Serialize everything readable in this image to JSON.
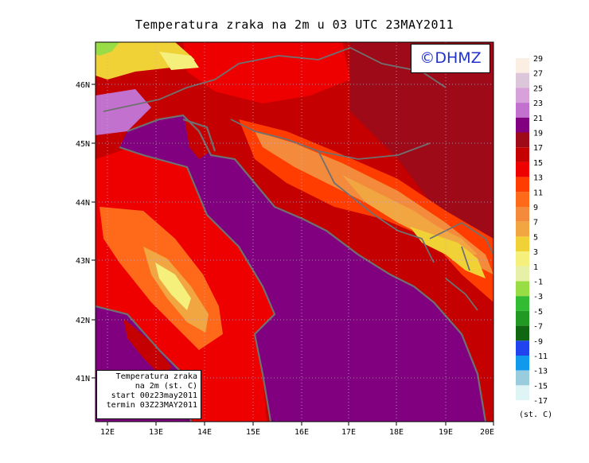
{
  "title": "Temperatura zraka na 2m u 03 UTC 23MAY2011",
  "logo": "©DHMZ",
  "info_box": {
    "line1": "Temperatura zraka",
    "line2": "na 2m (st. C)",
    "line3": "start 00z23may2011",
    "line4": "termin 03Z23MAY2011"
  },
  "x_ticks": [
    "12E",
    "13E",
    "14E",
    "15E",
    "16E",
    "17E",
    "18E",
    "19E",
    "20E"
  ],
  "y_ticks": [
    "41N",
    "42N",
    "43N",
    "44N",
    "45N",
    "46N"
  ],
  "legend": {
    "unit": "(st. C)",
    "levels": [
      {
        "label": "29",
        "color": "#fbeee2"
      },
      {
        "label": "27",
        "color": "#dcc6da"
      },
      {
        "label": "25",
        "color": "#d6a2d9"
      },
      {
        "label": "23",
        "color": "#c271cf"
      },
      {
        "label": "21",
        "color": "#800080"
      },
      {
        "label": "19",
        "color": "#9e0a18"
      },
      {
        "label": "17",
        "color": "#c40000"
      },
      {
        "label": "15",
        "color": "#ee0000"
      },
      {
        "label": "13",
        "color": "#ff3d00"
      },
      {
        "label": "11",
        "color": "#ff6a1a"
      },
      {
        "label": "9",
        "color": "#f38a3c"
      },
      {
        "label": "7",
        "color": "#f2a642"
      },
      {
        "label": "5",
        "color": "#f0d237"
      },
      {
        "label": "3",
        "color": "#f5ef7c"
      },
      {
        "label": "1",
        "color": "#e6f0a6"
      },
      {
        "label": "-1",
        "color": "#99dd44"
      },
      {
        "label": "-3",
        "color": "#33bb33"
      },
      {
        "label": "-5",
        "color": "#229922"
      },
      {
        "label": "-7",
        "color": "#116611"
      },
      {
        "label": "-9",
        "color": "#2244ee"
      },
      {
        "label": "-11",
        "color": "#1199ee"
      },
      {
        "label": "-13",
        "color": "#99ccdd"
      },
      {
        "label": "-15",
        "color": "#dff5f5"
      },
      {
        "label": "-17",
        "color": ""
      }
    ]
  },
  "colors": {
    "sea": "#800080",
    "land_warm": "#c40000",
    "coast": "#707070"
  }
}
